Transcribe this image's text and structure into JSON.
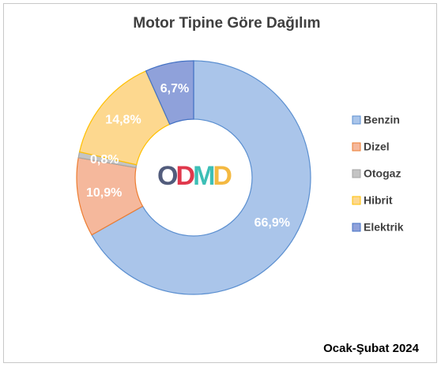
{
  "chart_data": {
    "type": "donut",
    "title": "Motor Tipine Göre Dağılım",
    "categories": [
      "Benzin",
      "Dizel",
      "Otogaz",
      "Hibrit",
      "Elektrik"
    ],
    "values": [
      66.9,
      10.9,
      0.8,
      14.8,
      6.7
    ],
    "value_labels": [
      "66,9%",
      "10,9%",
      "0,8%",
      "14,8%",
      "6,7%"
    ],
    "colors": [
      "#aac5ea",
      "#f5b89c",
      "#c4c4c4",
      "#fdd88f",
      "#8fa1da"
    ],
    "edge_colors": [
      "#5b8fd0",
      "#ed7d31",
      "#a5a5a5",
      "#ffc000",
      "#4472c4"
    ],
    "legend": "right",
    "logo": "ODMD",
    "logo_colors": [
      "#525c7c",
      "#e0384c",
      "#3dbfb6",
      "#f4b941"
    ],
    "annotation": "Ocak-Şubat 2024"
  }
}
